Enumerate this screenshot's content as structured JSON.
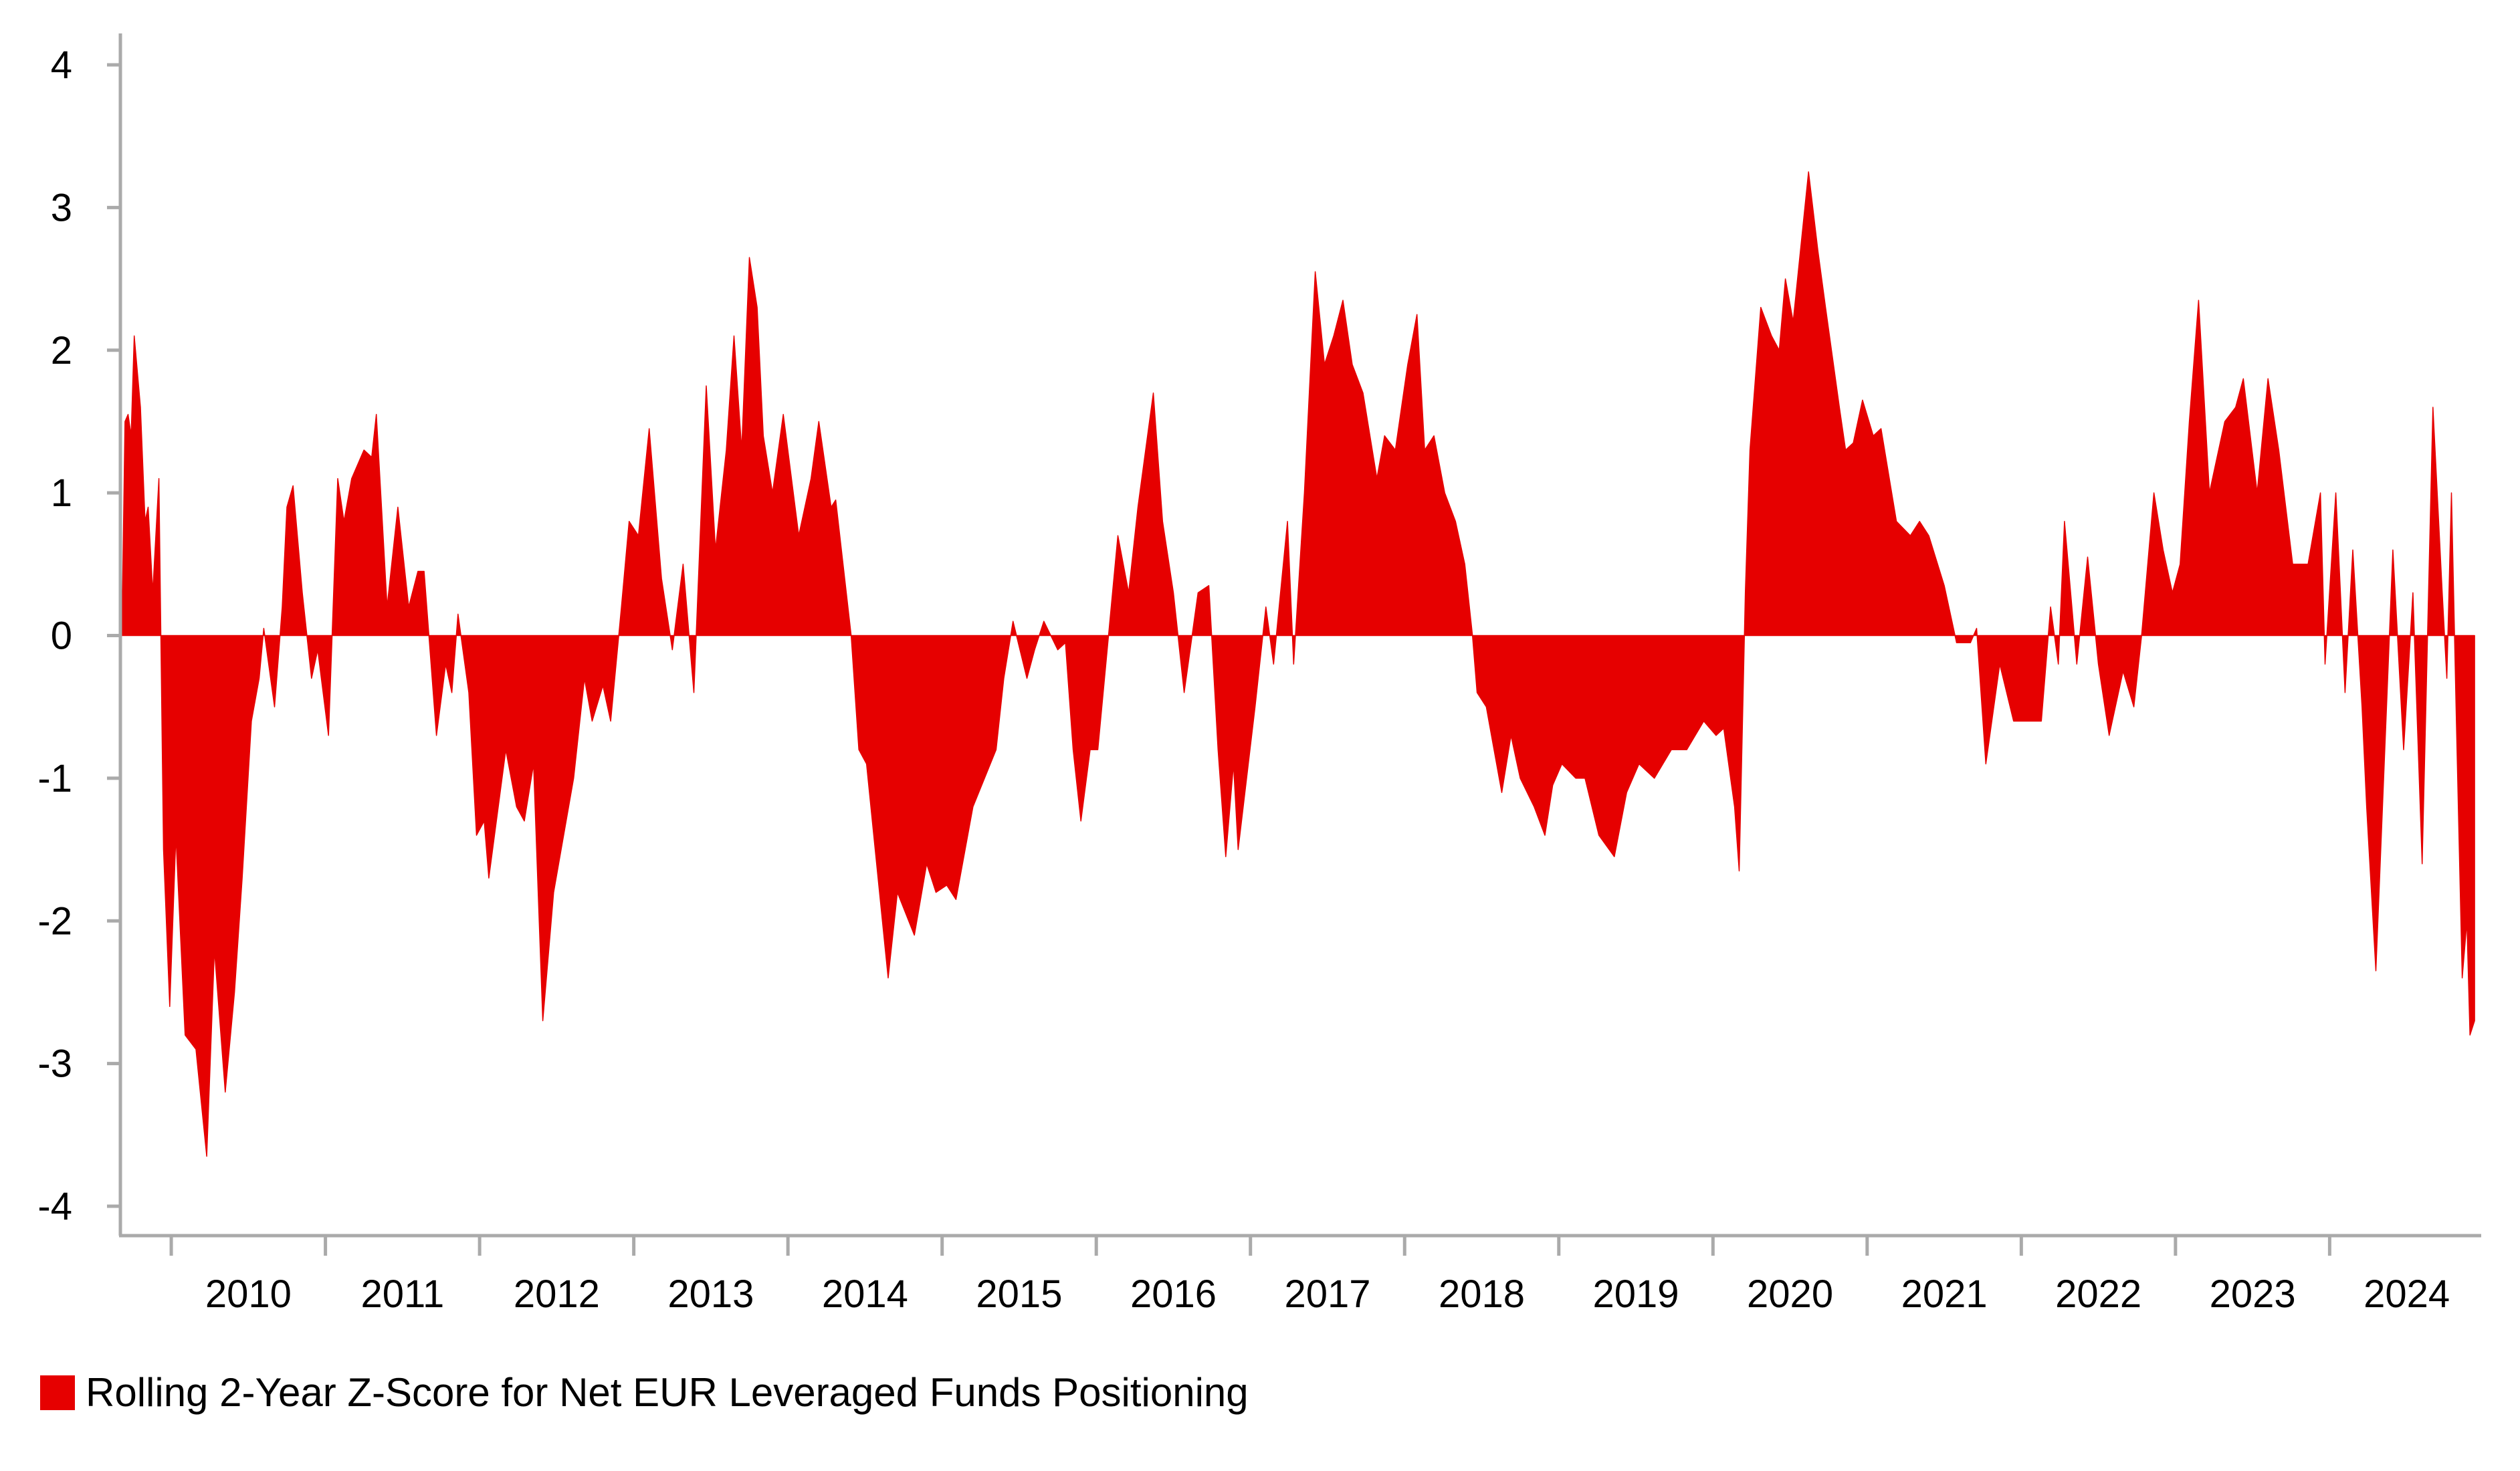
{
  "chart_data": {
    "type": "area",
    "title": "",
    "xlabel": "",
    "ylabel": "",
    "xlim": [
      2009.67,
      2024.97
    ],
    "ylim": [
      -4,
      4
    ],
    "yticks": [
      "4",
      "3",
      "2",
      "1",
      "0",
      "-1",
      "-2",
      "-3",
      "-4"
    ],
    "ytick_values": [
      4,
      3,
      2,
      1,
      0,
      -1,
      -2,
      -3,
      -4
    ],
    "xticks": [
      "2010",
      "2011",
      "2012",
      "2013",
      "2014",
      "2015",
      "2016",
      "2017",
      "2018",
      "2019",
      "2020",
      "2021",
      "2022",
      "2023",
      "2024"
    ],
    "grid": false,
    "legend_position": "bottom-left",
    "colors": {
      "series": "#E60000",
      "axis": "#AAAAAA"
    },
    "series": [
      {
        "name": "Rolling 2-Year Z-Score for Net EUR Leveraged Funds Positioning",
        "points": [
          [
            2009.68,
            0
          ],
          [
            2009.7,
            1.5
          ],
          [
            2009.72,
            1.55
          ],
          [
            2009.74,
            1.4
          ],
          [
            2009.76,
            2.1
          ],
          [
            2009.8,
            1.6
          ],
          [
            2009.83,
            0.8
          ],
          [
            2009.85,
            0.9
          ],
          [
            2009.88,
            0.3
          ],
          [
            2009.92,
            1.1
          ],
          [
            2009.95,
            -1.5
          ],
          [
            2009.99,
            -2.6
          ],
          [
            2010.03,
            -1.4
          ],
          [
            2010.09,
            -2.8
          ],
          [
            2010.16,
            -2.9
          ],
          [
            2010.23,
            -3.65
          ],
          [
            2010.28,
            -2.2
          ],
          [
            2010.35,
            -3.2
          ],
          [
            2010.41,
            -2.5
          ],
          [
            2010.46,
            -1.7
          ],
          [
            2010.52,
            -0.6
          ],
          [
            2010.57,
            -0.3
          ],
          [
            2010.6,
            0.05
          ],
          [
            2010.67,
            -0.5
          ],
          [
            2010.72,
            0.2
          ],
          [
            2010.75,
            0.9
          ],
          [
            2010.79,
            1.05
          ],
          [
            2010.85,
            0.3
          ],
          [
            2010.91,
            -0.3
          ],
          [
            2010.95,
            -0.1
          ],
          [
            2011.02,
            -0.7
          ],
          [
            2011.08,
            1.1
          ],
          [
            2011.12,
            0.8
          ],
          [
            2011.17,
            1.1
          ],
          [
            2011.25,
            1.3
          ],
          [
            2011.3,
            1.25
          ],
          [
            2011.33,
            1.55
          ],
          [
            2011.4,
            0.2
          ],
          [
            2011.47,
            0.9
          ],
          [
            2011.54,
            0.2
          ],
          [
            2011.6,
            0.45
          ],
          [
            2011.64,
            0.45
          ],
          [
            2011.72,
            -0.7
          ],
          [
            2011.78,
            -0.2
          ],
          [
            2011.82,
            -0.4
          ],
          [
            2011.86,
            0.15
          ],
          [
            2011.93,
            -0.4
          ],
          [
            2011.98,
            -1.4
          ],
          [
            2012.03,
            -1.3
          ],
          [
            2012.06,
            -1.7
          ],
          [
            2012.17,
            -0.8
          ],
          [
            2012.24,
            -1.2
          ],
          [
            2012.29,
            -1.3
          ],
          [
            2012.35,
            -0.9
          ],
          [
            2012.41,
            -2.7
          ],
          [
            2012.48,
            -1.8
          ],
          [
            2012.61,
            -1.0
          ],
          [
            2012.68,
            -0.3
          ],
          [
            2012.73,
            -0.6
          ],
          [
            2012.8,
            -0.35
          ],
          [
            2012.85,
            -0.6
          ],
          [
            2012.92,
            0.2
          ],
          [
            2012.97,
            0.8
          ],
          [
            2013.03,
            0.7
          ],
          [
            2013.1,
            1.45
          ],
          [
            2013.18,
            0.4
          ],
          [
            2013.25,
            -0.1
          ],
          [
            2013.32,
            0.5
          ],
          [
            2013.39,
            -0.4
          ],
          [
            2013.47,
            1.75
          ],
          [
            2013.53,
            0.6
          ],
          [
            2013.6,
            1.3
          ],
          [
            2013.65,
            2.1
          ],
          [
            2013.7,
            1.3
          ],
          [
            2013.75,
            2.65
          ],
          [
            2013.8,
            2.3
          ],
          [
            2013.84,
            1.4
          ],
          [
            2013.9,
            1.0
          ],
          [
            2013.97,
            1.55
          ],
          [
            2014.07,
            0.7
          ],
          [
            2014.15,
            1.1
          ],
          [
            2014.2,
            1.5
          ],
          [
            2014.28,
            0.9
          ],
          [
            2014.31,
            0.95
          ],
          [
            2014.41,
            0
          ],
          [
            2014.46,
            -0.8
          ],
          [
            2014.51,
            -0.9
          ],
          [
            2014.65,
            -2.4
          ],
          [
            2014.71,
            -1.8
          ],
          [
            2014.82,
            -2.1
          ],
          [
            2014.9,
            -1.6
          ],
          [
            2014.96,
            -1.8
          ],
          [
            2015.03,
            -1.75
          ],
          [
            2015.09,
            -1.85
          ],
          [
            2015.2,
            -1.2
          ],
          [
            2015.35,
            -0.8
          ],
          [
            2015.4,
            -0.3
          ],
          [
            2015.46,
            0.1
          ],
          [
            2015.55,
            -0.3
          ],
          [
            2015.6,
            -0.1
          ],
          [
            2015.66,
            0.1
          ],
          [
            2015.75,
            -0.1
          ],
          [
            2015.8,
            -0.05
          ],
          [
            2015.85,
            -0.8
          ],
          [
            2015.9,
            -1.3
          ],
          [
            2015.96,
            -0.8
          ],
          [
            2016.01,
            -0.8
          ],
          [
            2016.14,
            0.7
          ],
          [
            2016.21,
            0.3
          ],
          [
            2016.27,
            0.9
          ],
          [
            2016.37,
            1.7
          ],
          [
            2016.43,
            0.8
          ],
          [
            2016.5,
            0.3
          ],
          [
            2016.57,
            -0.4
          ],
          [
            2016.66,
            0.3
          ],
          [
            2016.73,
            0.35
          ],
          [
            2016.79,
            -0.8
          ],
          [
            2016.84,
            -1.55
          ],
          [
            2016.89,
            -0.9
          ],
          [
            2016.92,
            -1.5
          ],
          [
            2017.03,
            -0.5
          ],
          [
            2017.1,
            0.2
          ],
          [
            2017.15,
            -0.2
          ],
          [
            2017.24,
            0.8
          ],
          [
            2017.28,
            -0.2
          ],
          [
            2017.35,
            1.0
          ],
          [
            2017.42,
            2.55
          ],
          [
            2017.48,
            1.9
          ],
          [
            2017.54,
            2.1
          ],
          [
            2017.6,
            2.35
          ],
          [
            2017.66,
            1.9
          ],
          [
            2017.73,
            1.7
          ],
          [
            2017.82,
            1.1
          ],
          [
            2017.87,
            1.4
          ],
          [
            2017.94,
            1.3
          ],
          [
            2018.02,
            1.9
          ],
          [
            2018.08,
            2.25
          ],
          [
            2018.13,
            1.3
          ],
          [
            2018.19,
            1.4
          ],
          [
            2018.26,
            1.0
          ],
          [
            2018.33,
            0.8
          ],
          [
            2018.39,
            0.5
          ],
          [
            2018.44,
            0
          ],
          [
            2018.47,
            -0.4
          ],
          [
            2018.53,
            -0.5
          ],
          [
            2018.63,
            -1.1
          ],
          [
            2018.69,
            -0.7
          ],
          [
            2018.75,
            -1.0
          ],
          [
            2018.84,
            -1.2
          ],
          [
            2018.91,
            -1.4
          ],
          [
            2018.96,
            -1.05
          ],
          [
            2019.02,
            -0.9
          ],
          [
            2019.11,
            -1.0
          ],
          [
            2019.17,
            -1.0
          ],
          [
            2019.26,
            -1.4
          ],
          [
            2019.36,
            -1.55
          ],
          [
            2019.44,
            -1.1
          ],
          [
            2019.52,
            -0.9
          ],
          [
            2019.62,
            -1.0
          ],
          [
            2019.73,
            -0.8
          ],
          [
            2019.83,
            -0.8
          ],
          [
            2019.94,
            -0.6
          ],
          [
            2020.02,
            -0.7
          ],
          [
            2020.07,
            -0.65
          ],
          [
            2020.14,
            -1.2
          ],
          [
            2020.17,
            -1.65
          ],
          [
            2020.21,
            0.3
          ],
          [
            2020.24,
            1.3
          ],
          [
            2020.31,
            2.3
          ],
          [
            2020.38,
            2.1
          ],
          [
            2020.43,
            2.0
          ],
          [
            2020.47,
            2.5
          ],
          [
            2020.52,
            2.2
          ],
          [
            2020.62,
            3.25
          ],
          [
            2020.68,
            2.7
          ],
          [
            2020.73,
            2.3
          ],
          [
            2020.82,
            1.6
          ],
          [
            2020.86,
            1.3
          ],
          [
            2020.91,
            1.35
          ],
          [
            2020.97,
            1.65
          ],
          [
            2021.04,
            1.4
          ],
          [
            2021.09,
            1.45
          ],
          [
            2021.19,
            0.8
          ],
          [
            2021.28,
            0.7
          ],
          [
            2021.34,
            0.8
          ],
          [
            2021.4,
            0.7
          ],
          [
            2021.5,
            0.35
          ],
          [
            2021.58,
            -0.05
          ],
          [
            2021.67,
            -0.05
          ],
          [
            2021.71,
            0.05
          ],
          [
            2021.77,
            -0.9
          ],
          [
            2021.86,
            -0.2
          ],
          [
            2021.95,
            -0.6
          ],
          [
            2022.05,
            -0.6
          ],
          [
            2022.13,
            -0.6
          ],
          [
            2022.19,
            0.2
          ],
          [
            2022.24,
            -0.2
          ],
          [
            2022.28,
            0.8
          ],
          [
            2022.36,
            -0.2
          ],
          [
            2022.43,
            0.55
          ],
          [
            2022.5,
            -0.2
          ],
          [
            2022.57,
            -0.7
          ],
          [
            2022.66,
            -0.25
          ],
          [
            2022.73,
            -0.5
          ],
          [
            2022.78,
            0
          ],
          [
            2022.86,
            1.0
          ],
          [
            2022.92,
            0.6
          ],
          [
            2022.98,
            0.3
          ],
          [
            2023.03,
            0.5
          ],
          [
            2023.09,
            1.5
          ],
          [
            2023.15,
            2.35
          ],
          [
            2023.22,
            1.0
          ],
          [
            2023.32,
            1.5
          ],
          [
            2023.39,
            1.6
          ],
          [
            2023.44,
            1.8
          ],
          [
            2023.53,
            1.0
          ],
          [
            2023.6,
            1.8
          ],
          [
            2023.67,
            1.3
          ],
          [
            2023.76,
            0.5
          ],
          [
            2023.86,
            0.5
          ],
          [
            2023.94,
            1.0
          ],
          [
            2023.97,
            -0.2
          ],
          [
            2024.04,
            1.0
          ],
          [
            2024.1,
            -0.4
          ],
          [
            2024.15,
            0.6
          ],
          [
            2024.21,
            -0.5
          ],
          [
            2024.24,
            -1.2
          ],
          [
            2024.3,
            -2.35
          ],
          [
            2024.35,
            -1.0
          ],
          [
            2024.41,
            0.6
          ],
          [
            2024.48,
            -0.8
          ],
          [
            2024.54,
            0.3
          ],
          [
            2024.6,
            -1.6
          ],
          [
            2024.67,
            1.6
          ],
          [
            2024.73,
            0.3
          ],
          [
            2024.76,
            -0.3
          ],
          [
            2024.79,
            1.0
          ],
          [
            2024.82,
            -0.5
          ],
          [
            2024.86,
            -2.4
          ],
          [
            2024.89,
            -2.0
          ],
          [
            2024.91,
            -2.8
          ],
          [
            2024.94,
            -2.7
          ]
        ]
      }
    ]
  }
}
